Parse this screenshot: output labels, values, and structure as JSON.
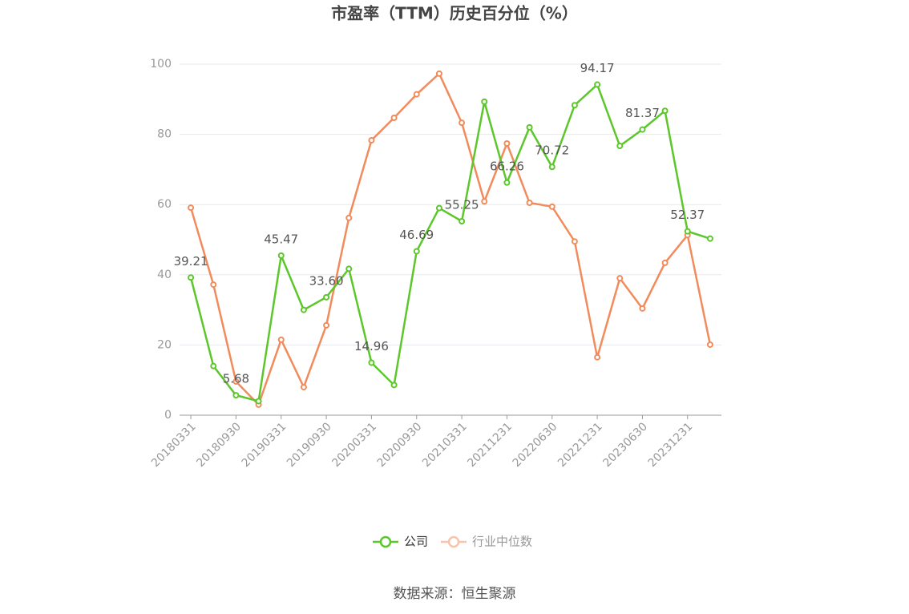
{
  "chart_data": {
    "type": "line",
    "title": "市盈率（TTM）历史百分位（%）",
    "categories": [
      "20180331",
      null,
      "20180930",
      null,
      "20190331",
      null,
      "20190930",
      null,
      "20200331",
      null,
      "20200930",
      null,
      "20210331",
      null,
      "20211231",
      null,
      "20220630",
      null,
      "20221231",
      null,
      "20230630",
      null,
      "20231231",
      null
    ],
    "series": [
      {
        "name": "公司",
        "color": "#5cc72a",
        "values": [
          39.21,
          14.0,
          5.68,
          4.0,
          45.47,
          30.0,
          33.6,
          41.7,
          14.96,
          8.6,
          46.69,
          59.0,
          55.25,
          89.3,
          66.26,
          82.0,
          70.72,
          88.3,
          94.17,
          76.7,
          81.37,
          86.7,
          52.37,
          50.3
        ],
        "value_labels": [
          "39.21",
          null,
          "5.68",
          null,
          "45.47",
          null,
          "33.60",
          null,
          "14.96",
          null,
          "46.69",
          null,
          "55.25",
          null,
          "66.26",
          null,
          "70.72",
          null,
          "94.17",
          null,
          "81.37",
          null,
          "52.37",
          null
        ]
      },
      {
        "name": "行业中位数",
        "color": "#f28b5b",
        "values": [
          59.1,
          37.2,
          9.6,
          3.0,
          21.5,
          8.0,
          25.6,
          56.2,
          78.3,
          84.7,
          91.4,
          97.3,
          83.3,
          60.9,
          77.4,
          60.5,
          59.4,
          49.5,
          16.5,
          39.0,
          30.4,
          43.4,
          51.3,
          20.1
        ]
      }
    ],
    "ylim": [
      0,
      100
    ],
    "yticks": [
      0,
      20,
      40,
      60,
      80,
      100
    ],
    "grid": true,
    "source": "数据来源：恒生聚源"
  }
}
